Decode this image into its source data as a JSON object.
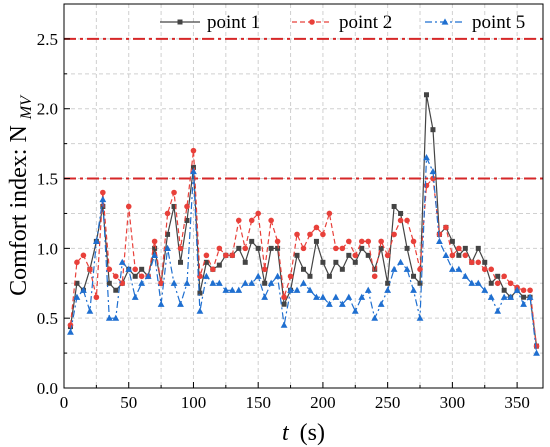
{
  "chart_data": {
    "type": "line",
    "xlabel_main": "t",
    "xlabel_unit": "(s)",
    "ylabel_main": "Comfort index: N",
    "ylabel_sub": "MV",
    "xlim": [
      0,
      370
    ],
    "ylim": [
      0,
      2.75
    ],
    "xticks": [
      0,
      50,
      100,
      150,
      200,
      250,
      300,
      350
    ],
    "yticks": [
      "0.0",
      "0.5",
      "1.0",
      "1.5",
      "2.0",
      "2.5"
    ],
    "grid": true,
    "legend_position": "top-right",
    "reference_lines": [
      {
        "y": 2.5,
        "color": "#d62728"
      },
      {
        "y": 1.5,
        "color": "#d62728"
      }
    ],
    "x": [
      5,
      10,
      15,
      20,
      25,
      30,
      35,
      40,
      45,
      50,
      55,
      60,
      65,
      70,
      75,
      80,
      85,
      90,
      95,
      100,
      105,
      110,
      115,
      120,
      125,
      130,
      135,
      140,
      145,
      150,
      155,
      160,
      165,
      170,
      175,
      180,
      185,
      190,
      195,
      200,
      205,
      210,
      215,
      220,
      225,
      230,
      235,
      240,
      245,
      250,
      255,
      260,
      265,
      270,
      275,
      280,
      285,
      290,
      295,
      300,
      305,
      310,
      315,
      320,
      325,
      330,
      335,
      340,
      345,
      350,
      355,
      360,
      365
    ],
    "series": [
      {
        "name": "point 1",
        "color": "#444444",
        "marker": "square",
        "dash": "solid",
        "values": [
          0.44,
          0.75,
          0.7,
          0.85,
          1.05,
          1.3,
          0.75,
          0.7,
          0.75,
          0.85,
          0.8,
          0.85,
          0.8,
          1.0,
          0.75,
          1.1,
          1.3,
          0.9,
          1.2,
          1.58,
          0.68,
          0.9,
          0.85,
          0.88,
          0.95,
          0.95,
          1.0,
          0.9,
          1.05,
          1.0,
          0.75,
          1.0,
          1.0,
          0.6,
          0.7,
          0.95,
          0.85,
          0.8,
          1.05,
          0.9,
          0.8,
          0.9,
          0.85,
          0.95,
          0.9,
          1.0,
          0.95,
          0.85,
          1.0,
          0.75,
          1.3,
          1.25,
          1.0,
          0.8,
          0.75,
          2.1,
          1.85,
          1.1,
          1.15,
          1.05,
          0.95,
          1.0,
          0.9,
          1.0,
          0.9,
          0.75,
          0.8,
          0.7,
          0.65,
          0.7,
          0.65,
          0.65,
          0.3
        ]
      },
      {
        "name": "point 2",
        "color": "#e8403a",
        "marker": "circle",
        "dash": "dashed",
        "values": [
          0.45,
          0.9,
          0.95,
          0.85,
          0.65,
          1.4,
          0.85,
          0.8,
          0.75,
          1.3,
          0.85,
          0.8,
          0.8,
          1.05,
          0.75,
          1.25,
          1.4,
          1.0,
          1.3,
          1.7,
          0.8,
          0.95,
          0.85,
          1.0,
          0.95,
          0.95,
          1.2,
          1.0,
          1.2,
          1.25,
          0.85,
          1.2,
          1.05,
          0.65,
          0.8,
          1.1,
          1.0,
          1.1,
          1.15,
          1.1,
          1.25,
          1.0,
          1.0,
          1.05,
          0.95,
          1.05,
          1.05,
          0.8,
          1.05,
          0.95,
          1.1,
          1.2,
          1.2,
          1.05,
          0.85,
          1.45,
          1.5,
          1.1,
          1.15,
          0.95,
          1.0,
          0.95,
          0.9,
          0.9,
          0.85,
          0.85,
          0.75,
          0.8,
          0.75,
          0.72,
          0.7,
          0.7,
          0.3
        ]
      },
      {
        "name": "point 5",
        "color": "#1f6fd0",
        "marker": "triangle",
        "dash": "dashdot",
        "values": [
          0.4,
          0.65,
          0.7,
          0.55,
          1.05,
          1.35,
          0.5,
          0.5,
          0.9,
          0.85,
          0.65,
          0.75,
          0.8,
          0.95,
          0.6,
          1.0,
          0.75,
          0.6,
          0.75,
          1.55,
          0.55,
          0.8,
          0.75,
          0.75,
          0.7,
          0.7,
          0.7,
          0.75,
          0.75,
          0.8,
          0.65,
          0.75,
          0.8,
          0.45,
          0.7,
          0.7,
          0.75,
          0.7,
          0.65,
          0.65,
          0.6,
          0.65,
          0.6,
          0.65,
          0.55,
          0.65,
          0.7,
          0.5,
          0.6,
          0.7,
          0.85,
          0.9,
          0.85,
          0.7,
          0.5,
          1.65,
          1.55,
          1.05,
          0.95,
          0.85,
          0.85,
          0.8,
          0.75,
          0.75,
          0.7,
          0.65,
          0.55,
          0.65,
          0.65,
          0.7,
          0.6,
          0.65,
          0.25
        ]
      }
    ]
  }
}
